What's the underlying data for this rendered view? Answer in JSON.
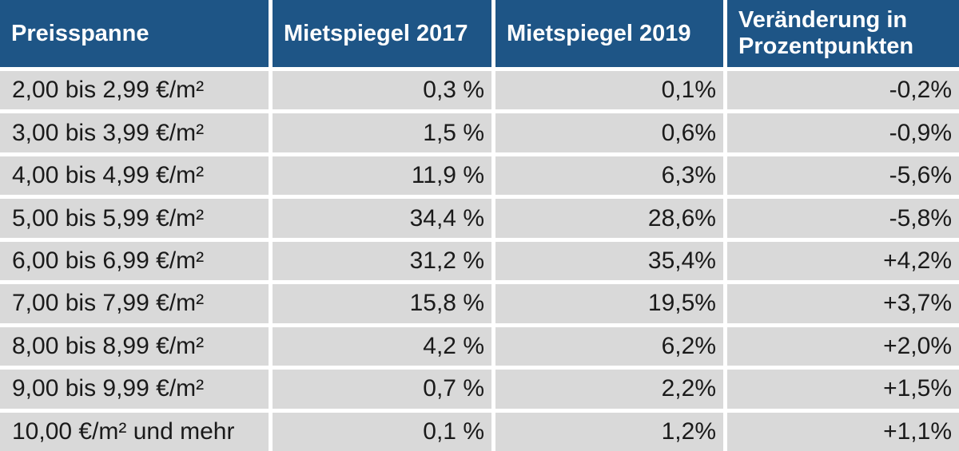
{
  "table": {
    "columns": [
      "Preisspanne",
      "Mietspiegel 2017",
      "Mietspiegel 2019",
      "Veränderung in Prozentpunkten"
    ],
    "rows": [
      [
        "2,00 bis 2,99 €/m²",
        "0,3 %",
        "0,1%",
        "-0,2%"
      ],
      [
        "3,00 bis 3,99 €/m²",
        "1,5 %",
        "0,6%",
        "-0,9%"
      ],
      [
        "4,00 bis 4,99 €/m²",
        "11,9 %",
        "6,3%",
        "-5,6%"
      ],
      [
        "5,00 bis 5,99 €/m²",
        "34,4 %",
        "28,6%",
        "-5,8%"
      ],
      [
        "6,00 bis 6,99 €/m²",
        "31,2 %",
        "35,4%",
        "+4,2%"
      ],
      [
        "7,00 bis 7,99 €/m²",
        "15,8 %",
        "19,5%",
        "+3,7%"
      ],
      [
        "8,00 bis 8,99 €/m²",
        "4,2 %",
        "6,2%",
        "+2,0%"
      ],
      [
        "9,00 bis 9,99 €/m²",
        "0,7 %",
        "2,2%",
        "+1,5%"
      ],
      [
        "10,00 €/m² und mehr",
        "0,1 %",
        "1,2%",
        "+1,1%"
      ]
    ]
  },
  "chart_data": {
    "type": "table",
    "title": "",
    "columns": [
      "Preisspanne",
      "Mietspiegel 2017",
      "Mietspiegel 2019",
      "Veränderung in Prozentpunkten"
    ],
    "categories": [
      "2,00 bis 2,99 €/m²",
      "3,00 bis 3,99 €/m²",
      "4,00 bis 4,99 €/m²",
      "5,00 bis 5,99 €/m²",
      "6,00 bis 6,99 €/m²",
      "7,00 bis 7,99 €/m²",
      "8,00 bis 8,99 €/m²",
      "9,00 bis 9,99 €/m²",
      "10,00 €/m² und mehr"
    ],
    "series": [
      {
        "name": "Mietspiegel 2017",
        "unit": "%",
        "values": [
          0.3,
          1.5,
          11.9,
          34.4,
          31.2,
          15.8,
          4.2,
          0.7,
          0.1
        ]
      },
      {
        "name": "Mietspiegel 2019",
        "unit": "%",
        "values": [
          0.1,
          0.6,
          6.3,
          28.6,
          35.4,
          19.5,
          6.2,
          2.2,
          1.2
        ]
      },
      {
        "name": "Veränderung in Prozentpunkten",
        "unit": "pp",
        "values": [
          -0.2,
          -0.9,
          -5.6,
          -5.8,
          4.2,
          3.7,
          2.0,
          1.5,
          1.1
        ]
      }
    ]
  },
  "colors": {
    "header_bg": "#1e5586",
    "header_text": "#ffffff",
    "row_bg": "#d9d9d9",
    "cell_text": "#1a1a1a",
    "gutter": "#ffffff"
  }
}
